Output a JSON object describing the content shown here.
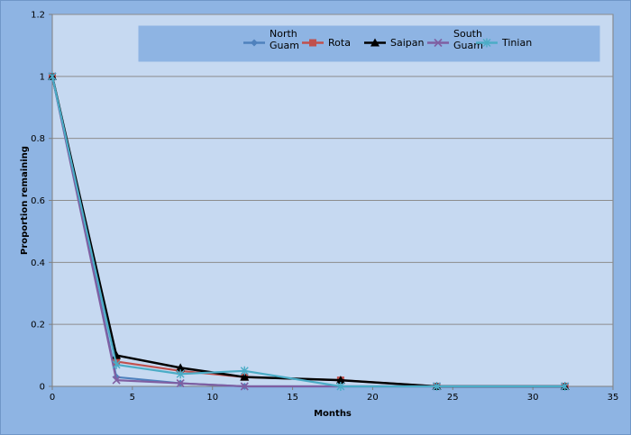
{
  "chart_data": {
    "type": "line",
    "title": "",
    "xlabel": "Months",
    "ylabel": "Proportion remaining",
    "xlim": [
      0,
      35
    ],
    "ylim": [
      0,
      1.2
    ],
    "x_ticks": [
      "0",
      "5",
      "10",
      "15",
      "20",
      "25",
      "30",
      "35"
    ],
    "y_ticks": [
      "0",
      "0.2",
      "0.4",
      "0.6",
      "0.8",
      "1",
      "1.2"
    ],
    "grid": "horizontal",
    "legend_position": "top",
    "series": [
      {
        "name": "North Guam",
        "color": "#4f81bd",
        "marker": "diamond",
        "points": [
          [
            0,
            1
          ],
          [
            4,
            0.03
          ],
          [
            8,
            0.01
          ],
          [
            12,
            0
          ],
          [
            24,
            0
          ],
          [
            32,
            0
          ]
        ]
      },
      {
        "name": "Rota",
        "color": "#c0504d",
        "marker": "square",
        "points": [
          [
            0,
            1
          ],
          [
            4,
            0.08
          ],
          [
            8,
            0.05
          ],
          [
            12,
            0.03
          ],
          [
            18,
            0.02
          ],
          [
            24,
            0
          ],
          [
            32,
            0
          ]
        ]
      },
      {
        "name": "Saipan",
        "color": "#000000",
        "marker": "triangle",
        "points": [
          [
            0,
            1
          ],
          [
            4,
            0.1
          ],
          [
            8,
            0.06
          ],
          [
            12,
            0.03
          ],
          [
            18,
            0.02
          ],
          [
            24,
            0
          ],
          [
            32,
            0
          ]
        ]
      },
      {
        "name": "South Guam",
        "color": "#7f5fa2",
        "marker": "x",
        "points": [
          [
            0,
            1
          ],
          [
            4,
            0.02
          ],
          [
            8,
            0.01
          ],
          [
            12,
            0
          ],
          [
            24,
            0
          ],
          [
            32,
            0
          ]
        ]
      },
      {
        "name": "Tinian",
        "color": "#4bacc6",
        "marker": "star",
        "points": [
          [
            0,
            1
          ],
          [
            4,
            0.07
          ],
          [
            8,
            0.04
          ],
          [
            12,
            0.05
          ],
          [
            18,
            0
          ],
          [
            24,
            0
          ],
          [
            32,
            0
          ]
        ]
      }
    ]
  }
}
